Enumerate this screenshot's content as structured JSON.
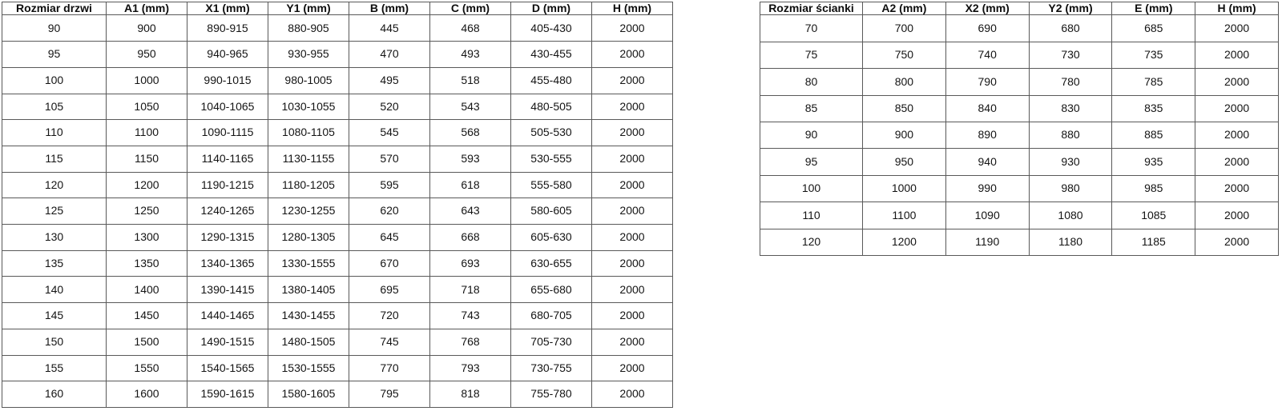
{
  "page": {
    "background_color": "#ffffff",
    "border_color": "#595959",
    "text_color": "#141414"
  },
  "tables": [
    {
      "name": "door-dimensions-table",
      "headers": [
        "Rozmiar drzwi",
        "A1 (mm)",
        "X1 (mm)",
        "Y1 (mm)",
        "B (mm)",
        "C (mm)",
        "D (mm)",
        "H (mm)"
      ],
      "rows": [
        [
          "90",
          "900",
          "890-915",
          "880-905",
          "445",
          "468",
          "405-430",
          "2000"
        ],
        [
          "95",
          "950",
          "940-965",
          "930-955",
          "470",
          "493",
          "430-455",
          "2000"
        ],
        [
          "100",
          "1000",
          "990-1015",
          "980-1005",
          "495",
          "518",
          "455-480",
          "2000"
        ],
        [
          "105",
          "1050",
          "1040-1065",
          "1030-1055",
          "520",
          "543",
          "480-505",
          "2000"
        ],
        [
          "110",
          "1100",
          "1090-1115",
          "1080-1105",
          "545",
          "568",
          "505-530",
          "2000"
        ],
        [
          "115",
          "1150",
          "1140-1165",
          "1130-1155",
          "570",
          "593",
          "530-555",
          "2000"
        ],
        [
          "120",
          "1200",
          "1190-1215",
          "1180-1205",
          "595",
          "618",
          "555-580",
          "2000"
        ],
        [
          "125",
          "1250",
          "1240-1265",
          "1230-1255",
          "620",
          "643",
          "580-605",
          "2000"
        ],
        [
          "130",
          "1300",
          "1290-1315",
          "1280-1305",
          "645",
          "668",
          "605-630",
          "2000"
        ],
        [
          "135",
          "1350",
          "1340-1365",
          "1330-1555",
          "670",
          "693",
          "630-655",
          "2000"
        ],
        [
          "140",
          "1400",
          "1390-1415",
          "1380-1405",
          "695",
          "718",
          "655-680",
          "2000"
        ],
        [
          "145",
          "1450",
          "1440-1465",
          "1430-1455",
          "720",
          "743",
          "680-705",
          "2000"
        ],
        [
          "150",
          "1500",
          "1490-1515",
          "1480-1505",
          "745",
          "768",
          "705-730",
          "2000"
        ],
        [
          "155",
          "1550",
          "1540-1565",
          "1530-1555",
          "770",
          "793",
          "730-755",
          "2000"
        ],
        [
          "160",
          "1600",
          "1590-1615",
          "1580-1605",
          "795",
          "818",
          "755-780",
          "2000"
        ]
      ]
    },
    {
      "name": "wall-dimensions-table",
      "headers": [
        "Rozmiar ścianki",
        "A2 (mm)",
        "X2 (mm)",
        "Y2 (mm)",
        "E (mm)",
        "H (mm)"
      ],
      "rows": [
        [
          "70",
          "700",
          "690",
          "680",
          "685",
          "2000"
        ],
        [
          "75",
          "750",
          "740",
          "730",
          "735",
          "2000"
        ],
        [
          "80",
          "800",
          "790",
          "780",
          "785",
          "2000"
        ],
        [
          "85",
          "850",
          "840",
          "830",
          "835",
          "2000"
        ],
        [
          "90",
          "900",
          "890",
          "880",
          "885",
          "2000"
        ],
        [
          "95",
          "950",
          "940",
          "930",
          "935",
          "2000"
        ],
        [
          "100",
          "1000",
          "990",
          "980",
          "985",
          "2000"
        ],
        [
          "110",
          "1100",
          "1090",
          "1080",
          "1085",
          "2000"
        ],
        [
          "120",
          "1200",
          "1190",
          "1180",
          "1185",
          "2000"
        ]
      ]
    }
  ]
}
